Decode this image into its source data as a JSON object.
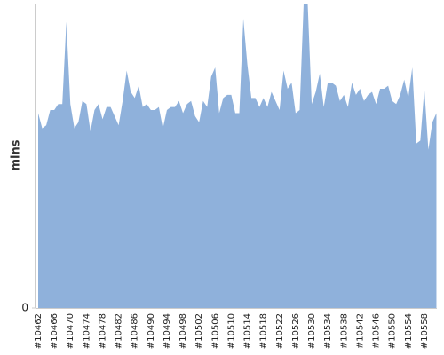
{
  "chart_data": {
    "type": "area",
    "y_label": "mins",
    "color": "#8fb1db",
    "categories": [
      "#10462",
      null,
      null,
      null,
      "#10466",
      null,
      null,
      null,
      "#10470",
      null,
      null,
      null,
      "#10474",
      null,
      null,
      null,
      "#10478",
      null,
      null,
      null,
      "#10482",
      null,
      null,
      null,
      "#10486",
      null,
      null,
      null,
      "#10490",
      null,
      null,
      null,
      "#10494",
      null,
      null,
      null,
      "#10498",
      null,
      null,
      null,
      "#10502",
      null,
      null,
      null,
      "#10506",
      null,
      null,
      null,
      "#10510",
      null,
      null,
      null,
      "#10514",
      null,
      null,
      null,
      "#10518",
      null,
      null,
      null,
      "#10522",
      null,
      null,
      null,
      "#10526",
      null,
      null,
      null,
      "#10530",
      null,
      null,
      null,
      "#10534",
      null,
      null,
      null,
      "#10538",
      null,
      null,
      null,
      "#10542",
      null,
      null,
      null,
      "#10546",
      null,
      null,
      null,
      "#10550",
      null,
      null,
      null,
      "#10554",
      null,
      null,
      null,
      "#10558",
      null,
      null,
      null
    ],
    "values": [
      64,
      59,
      60,
      65,
      65,
      67,
      67,
      94,
      67,
      59,
      61,
      68,
      67,
      58,
      65,
      67,
      62,
      66,
      66,
      63,
      60,
      68,
      78,
      71,
      69,
      73,
      66,
      67,
      65,
      65,
      66,
      59,
      65,
      66,
      66,
      68,
      64,
      67,
      68,
      63,
      61,
      68,
      66,
      76,
      79,
      64,
      69,
      70,
      70,
      64,
      64,
      95,
      80,
      69,
      69,
      66,
      69,
      66,
      71,
      68,
      65,
      78,
      72,
      74,
      64,
      65,
      100,
      100,
      67,
      71,
      77,
      66,
      74,
      74,
      73,
      68,
      70,
      66,
      74,
      70,
      72,
      68,
      70,
      71,
      67,
      72,
      72,
      73,
      68,
      67,
      70,
      75,
      69,
      79,
      54,
      55,
      72,
      52,
      61,
      64
    ],
    "ylim": [
      0,
      100
    ],
    "yticks": [
      0
    ]
  }
}
